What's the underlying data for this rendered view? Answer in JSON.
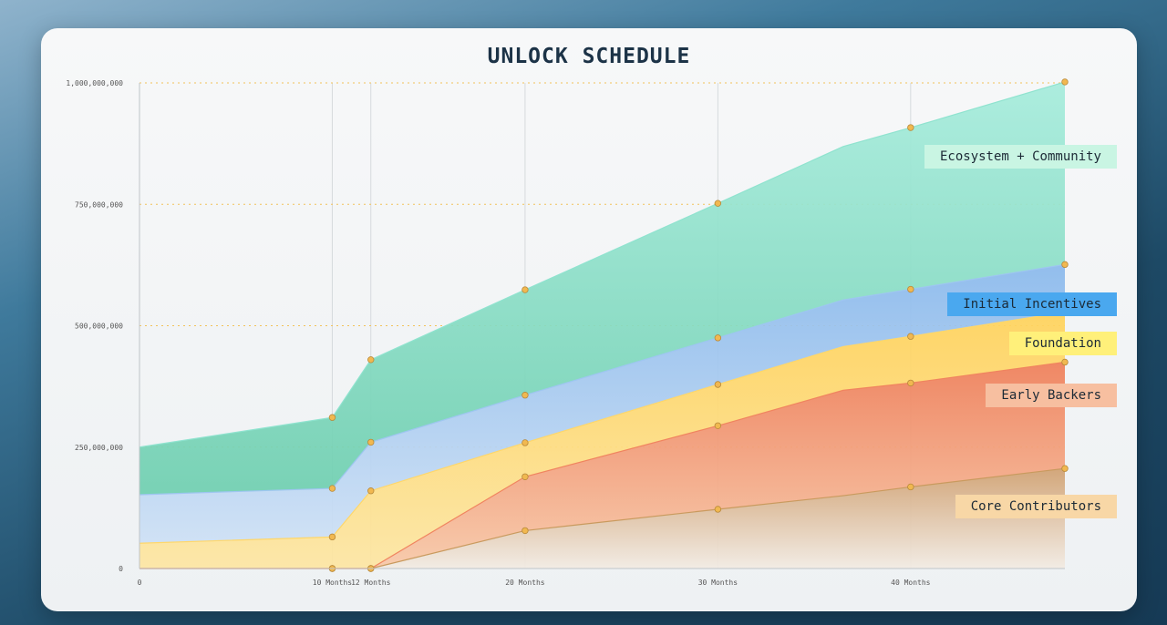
{
  "chart_data": {
    "type": "area",
    "stacked": true,
    "title": "UNLOCK SCHEDULE",
    "x_tick_labels": [
      "0",
      "10 Months",
      "12 Months",
      "20 Months",
      "30 Months",
      "40 Months"
    ],
    "x_tick_values": [
      0,
      10,
      12,
      20,
      30,
      40
    ],
    "y_tick_labels": [
      "0",
      "250,000,000",
      "500,000,000",
      "750,000,000",
      "1,000,000,000"
    ],
    "y_tick_values": [
      0,
      250000000,
      500000000,
      750000000,
      1000000000
    ],
    "xlim": [
      0,
      48
    ],
    "ylim": [
      0,
      1000000000
    ],
    "grid": "vertical lines at x ticks, dotted horizontal lines at y ticks",
    "x": [
      0,
      10,
      12,
      20,
      30,
      36.5,
      40,
      48
    ],
    "series": [
      {
        "name": "Core Contributors",
        "color": "#c99a5e",
        "values": [
          0,
          0,
          0,
          78000000,
          122000000,
          150000000,
          168000000,
          206000000
        ]
      },
      {
        "name": "Early Backers",
        "color": "#f0845f",
        "values": [
          0,
          0,
          0,
          111000000,
          172000000,
          217000000,
          214000000,
          219000000
        ]
      },
      {
        "name": "Foundation",
        "color": "#ffd76b",
        "values": [
          52000000,
          65000000,
          160000000,
          70000000,
          85000000,
          90000000,
          96000000,
          103000000
        ]
      },
      {
        "name": "Initial Incentives",
        "color": "#9ec6f0",
        "values": [
          100000000,
          100000000,
          100000000,
          98000000,
          96000000,
          96000000,
          97000000,
          98000000
        ]
      },
      {
        "name": "Ecosystem + Community",
        "color": "#8fe3cf",
        "values": [
          98000000,
          146000000,
          170000000,
          217000000,
          277000000,
          316000000,
          333000000,
          376000000
        ]
      }
    ],
    "legend": [
      {
        "name": "Ecosystem + Community",
        "bg": "#c9f5e3"
      },
      {
        "name": "Initial Incentives",
        "bg": "#4aa8ef"
      },
      {
        "name": "Foundation",
        "bg": "#fff07a"
      },
      {
        "name": "Early Backers",
        "bg": "#f7bfa0"
      },
      {
        "name": "Core Contributors",
        "bg": "#f8d7a6"
      }
    ],
    "legend_placement": "right, next to each series end"
  }
}
